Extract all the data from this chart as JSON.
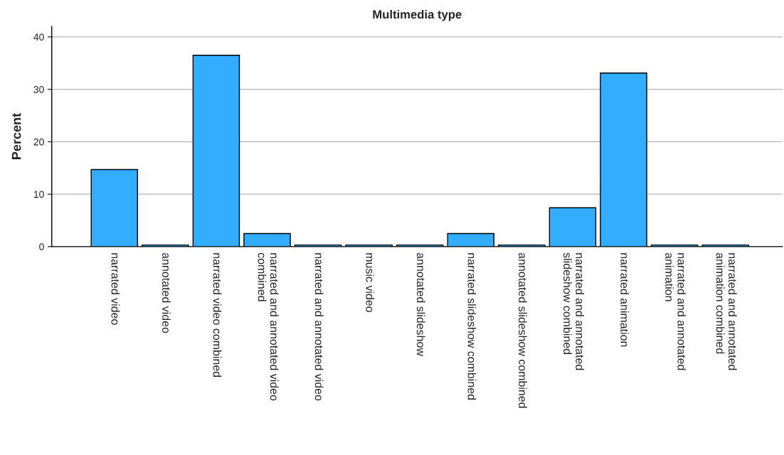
{
  "chart_data": {
    "type": "bar",
    "title": "Multimedia type",
    "ylabel": "Percent",
    "categories": [
      "narrated video",
      "annotated video",
      "narrated video combined",
      "narrated and annotated video combined",
      "narrated and annotated video",
      "music video",
      "annotated slideshow",
      "narrated slideshow combined",
      "annotated slideshow combined",
      "narrated and annotated slideshow combined",
      "narrated animation",
      "narrated and annotated animation",
      "narrated and annotated animation combined"
    ],
    "values": [
      14.7,
      0.3,
      36.5,
      2.5,
      0.3,
      0.3,
      0.3,
      2.5,
      0.3,
      7.4,
      33.1,
      0.3,
      0.3
    ],
    "color": "#33adff",
    "ylim": [
      0,
      42
    ],
    "yticks": [
      0,
      10,
      20,
      30,
      40
    ],
    "grid": "y"
  }
}
